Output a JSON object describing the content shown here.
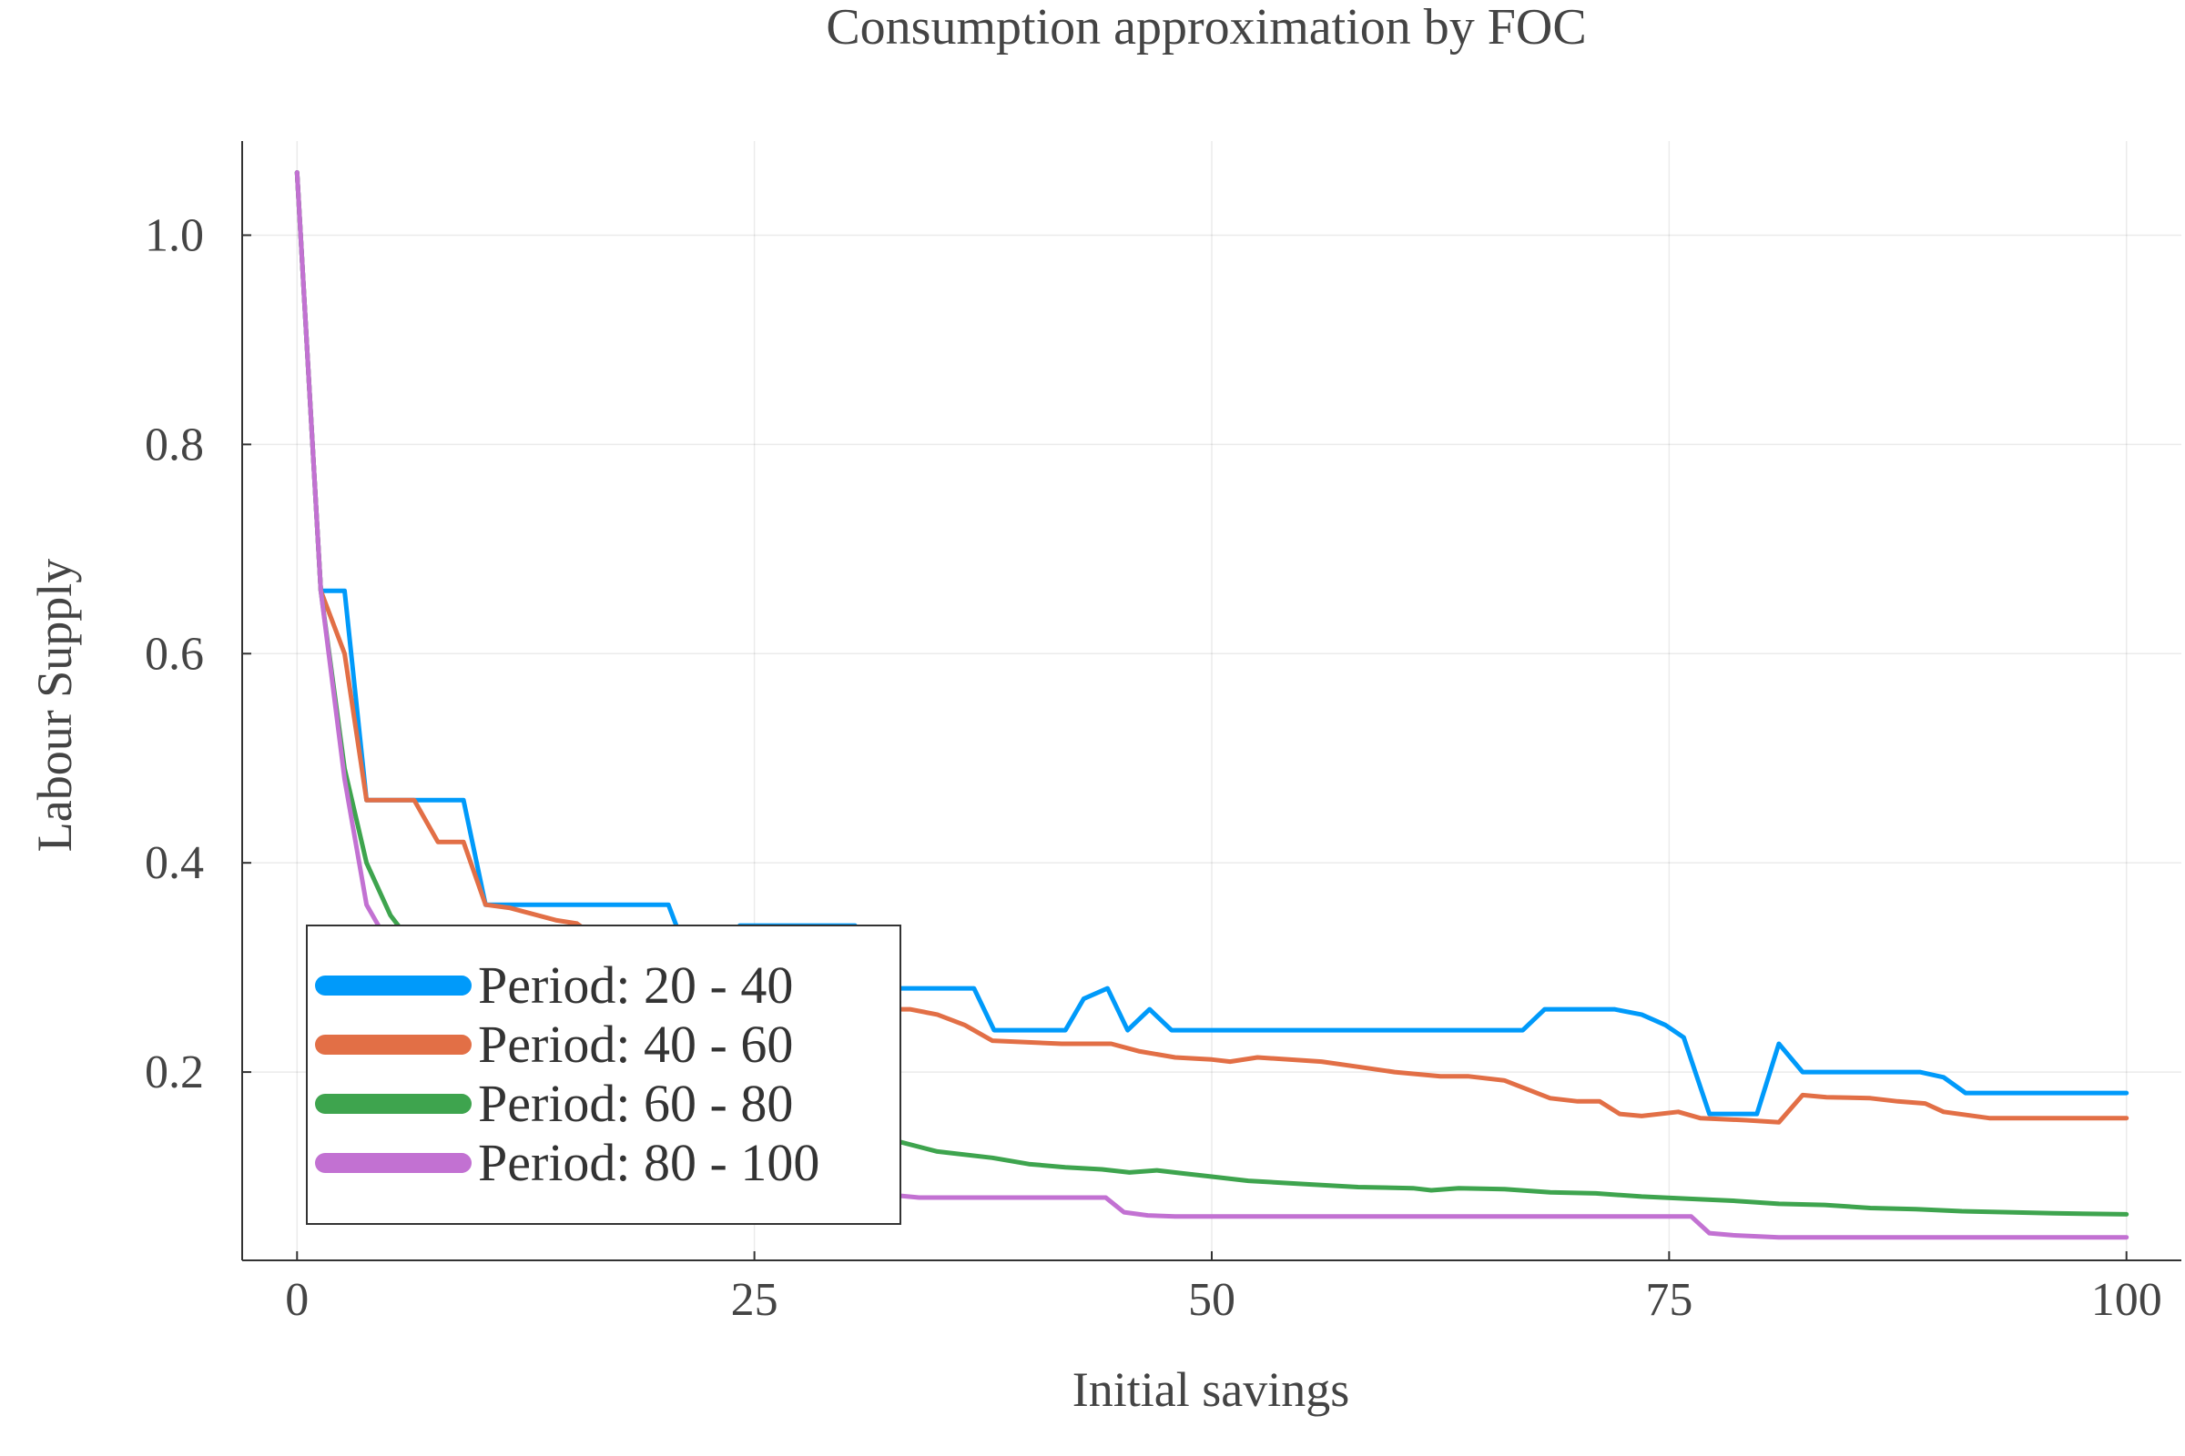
{
  "chart_data": {
    "type": "line",
    "title": "Consumption approximation by FOC",
    "xlabel": "Initial savings",
    "ylabel": "Labour Supply",
    "xlim": [
      -3,
      103
    ],
    "ylim": [
      0.02,
      1.09
    ],
    "xticks": [
      0,
      25,
      50,
      75,
      100
    ],
    "xtick_labels": [
      "0",
      "25",
      "50",
      "75",
      "100"
    ],
    "yticks": [
      0.2,
      0.4,
      0.6,
      0.8,
      1.0
    ],
    "ytick_labels": [
      "0.2",
      "0.4",
      "0.6",
      "0.8",
      "1.0"
    ],
    "grid": true,
    "legend_position": "bottom-left",
    "series": [
      {
        "name": "Period: 20 - 40",
        "color": "#009AFA",
        "points": [
          [
            0,
            1.06
          ],
          [
            1.3,
            0.66
          ],
          [
            2.6,
            0.66
          ],
          [
            3.8,
            0.46
          ],
          [
            6.4,
            0.46
          ],
          [
            9.1,
            0.46
          ],
          [
            10.3,
            0.36
          ],
          [
            20.3,
            0.36
          ],
          [
            21.6,
            0.3
          ],
          [
            24.2,
            0.34
          ],
          [
            30.5,
            0.34
          ],
          [
            32.1,
            0.28
          ],
          [
            37.0,
            0.28
          ],
          [
            38.1,
            0.24
          ],
          [
            42.0,
            0.24
          ],
          [
            43.0,
            0.27
          ],
          [
            44.3,
            0.28
          ],
          [
            45.4,
            0.24
          ],
          [
            46.6,
            0.26
          ],
          [
            47.8,
            0.24
          ],
          [
            67.0,
            0.24
          ],
          [
            68.2,
            0.26
          ],
          [
            72.0,
            0.26
          ],
          [
            73.5,
            0.255
          ],
          [
            74.8,
            0.245
          ],
          [
            75.8,
            0.233
          ],
          [
            77.2,
            0.16
          ],
          [
            79.8,
            0.16
          ],
          [
            81.0,
            0.227
          ],
          [
            82.3,
            0.2
          ],
          [
            88.7,
            0.2
          ],
          [
            90.0,
            0.195
          ],
          [
            91.2,
            0.18
          ],
          [
            100,
            0.18
          ]
        ]
      },
      {
        "name": "Period: 40 - 60",
        "color": "#E26F46",
        "points": [
          [
            0,
            1.06
          ],
          [
            1.3,
            0.66
          ],
          [
            2.6,
            0.6
          ],
          [
            3.8,
            0.46
          ],
          [
            6.4,
            0.46
          ],
          [
            7.7,
            0.42
          ],
          [
            9.1,
            0.42
          ],
          [
            10.3,
            0.36
          ],
          [
            11.6,
            0.357
          ],
          [
            14.2,
            0.345
          ],
          [
            15.3,
            0.342
          ],
          [
            16.4,
            0.328
          ],
          [
            20.3,
            0.315
          ],
          [
            24.2,
            0.3
          ],
          [
            30.5,
            0.28
          ],
          [
            32.1,
            0.26
          ],
          [
            33.5,
            0.26
          ],
          [
            35.0,
            0.255
          ],
          [
            36.5,
            0.245
          ],
          [
            38.0,
            0.23
          ],
          [
            41.8,
            0.227
          ],
          [
            44.5,
            0.227
          ],
          [
            46.0,
            0.22
          ],
          [
            48.0,
            0.214
          ],
          [
            50.0,
            0.212
          ],
          [
            51.0,
            0.21
          ],
          [
            52.5,
            0.214
          ],
          [
            56.0,
            0.21
          ],
          [
            58.0,
            0.205
          ],
          [
            60.0,
            0.2
          ],
          [
            62.5,
            0.196
          ],
          [
            64.0,
            0.196
          ],
          [
            66.0,
            0.192
          ],
          [
            68.5,
            0.175
          ],
          [
            70.0,
            0.172
          ],
          [
            71.2,
            0.172
          ],
          [
            72.3,
            0.16
          ],
          [
            73.5,
            0.158
          ],
          [
            75.5,
            0.162
          ],
          [
            76.7,
            0.156
          ],
          [
            79.2,
            0.154
          ],
          [
            81.0,
            0.152
          ],
          [
            82.3,
            0.178
          ],
          [
            83.6,
            0.176
          ],
          [
            86.0,
            0.175
          ],
          [
            87.5,
            0.172
          ],
          [
            89.0,
            0.17
          ],
          [
            90.0,
            0.162
          ],
          [
            92.5,
            0.156
          ],
          [
            100,
            0.156
          ]
        ]
      },
      {
        "name": "Period: 60 - 80",
        "color": "#3EA44E",
        "points": [
          [
            0,
            1.06
          ],
          [
            1.3,
            0.66
          ],
          [
            2.6,
            0.49
          ],
          [
            3.8,
            0.4
          ],
          [
            5.1,
            0.35
          ],
          [
            6.4,
            0.32
          ],
          [
            8.0,
            0.29
          ],
          [
            10.0,
            0.26
          ],
          [
            15.0,
            0.22
          ],
          [
            20.0,
            0.18
          ],
          [
            25.0,
            0.155
          ],
          [
            30.0,
            0.14
          ],
          [
            33.0,
            0.133
          ],
          [
            35.0,
            0.124
          ],
          [
            38.0,
            0.118
          ],
          [
            40.0,
            0.112
          ],
          [
            42.0,
            0.109
          ],
          [
            44.0,
            0.107
          ],
          [
            45.5,
            0.104
          ],
          [
            47.0,
            0.106
          ],
          [
            48.5,
            0.103
          ],
          [
            50.0,
            0.1
          ],
          [
            52.0,
            0.096
          ],
          [
            55.0,
            0.093
          ],
          [
            58.0,
            0.09
          ],
          [
            61.0,
            0.089
          ],
          [
            62.0,
            0.087
          ],
          [
            63.5,
            0.089
          ],
          [
            66.0,
            0.088
          ],
          [
            68.5,
            0.085
          ],
          [
            71.0,
            0.084
          ],
          [
            73.5,
            0.081
          ],
          [
            76.0,
            0.079
          ],
          [
            78.5,
            0.077
          ],
          [
            81.0,
            0.074
          ],
          [
            83.5,
            0.073
          ],
          [
            86.0,
            0.07
          ],
          [
            88.5,
            0.069
          ],
          [
            91.0,
            0.067
          ],
          [
            93.5,
            0.066
          ],
          [
            96.0,
            0.065
          ],
          [
            100,
            0.064
          ]
        ]
      },
      {
        "name": "Period: 80 - 100",
        "color": "#C271D2",
        "points": [
          [
            0,
            1.06
          ],
          [
            1.3,
            0.66
          ],
          [
            2.6,
            0.48
          ],
          [
            3.8,
            0.36
          ],
          [
            5.1,
            0.32
          ],
          [
            6.4,
            0.29
          ],
          [
            8.0,
            0.25
          ],
          [
            10.0,
            0.2
          ],
          [
            15.0,
            0.14
          ],
          [
            20.0,
            0.11
          ],
          [
            25.0,
            0.095
          ],
          [
            30.0,
            0.085
          ],
          [
            32.8,
            0.082
          ],
          [
            34.0,
            0.08
          ],
          [
            44.2,
            0.08
          ],
          [
            45.2,
            0.066
          ],
          [
            46.5,
            0.063
          ],
          [
            48.0,
            0.062
          ],
          [
            76.2,
            0.062
          ],
          [
            77.2,
            0.046
          ],
          [
            78.5,
            0.044
          ],
          [
            81.0,
            0.042
          ],
          [
            100,
            0.042
          ]
        ]
      }
    ]
  }
}
